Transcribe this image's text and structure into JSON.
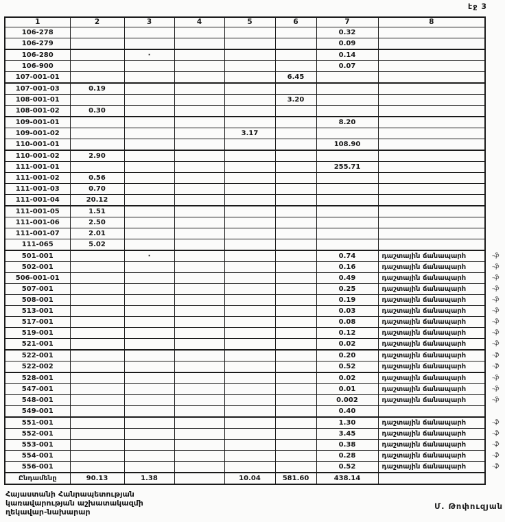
{
  "page": {
    "label": "էջ 3"
  },
  "table": {
    "headers": [
      "1",
      "2",
      "3",
      "4",
      "5",
      "6",
      "7",
      "8"
    ],
    "rows": [
      {
        "code": "106-278",
        "c7": "0.32"
      },
      {
        "code": "106-279",
        "c7": "0.09"
      },
      {
        "code": "106-280",
        "c3": "·",
        "c7": "0.14"
      },
      {
        "code": "106-900",
        "c7": "0.07"
      },
      {
        "code": "107-001-01",
        "c6": "6.45"
      },
      {
        "code": "107-001-03",
        "c2": "0.19"
      },
      {
        "code": "108-001-01",
        "c6": "3.20"
      },
      {
        "code": "108-001-02",
        "c2": "0.30"
      },
      {
        "code": "109-001-01",
        "c7": "8.20"
      },
      {
        "code": "109-001-02",
        "c5": "3.17"
      },
      {
        "code": "110-001-01",
        "c7": "108.90"
      },
      {
        "code": "110-001-02",
        "c2": "2.90"
      },
      {
        "code": "111-001-01",
        "c7": "255.71"
      },
      {
        "code": "111-001-02",
        "c2": "0.56"
      },
      {
        "code": "111-001-03",
        "c2": "0.70"
      },
      {
        "code": "111-001-04",
        "c2": "20.12"
      },
      {
        "code": "111-001-05",
        "c2": "1.51"
      },
      {
        "code": "111-001-06",
        "c2": "2.50"
      },
      {
        "code": "111-001-07",
        "c2": "2.01"
      },
      {
        "code": "111-065",
        "c2": "5.02"
      },
      {
        "code": "501-001",
        "c3": "·",
        "c7": "0.74",
        "c8": "դաշտային ճանապարհ",
        "mark": "-ֆ"
      },
      {
        "code": "502-001",
        "c7": "0.16",
        "c8": "դաշտային ճանապարհ",
        "mark": "-ֆ"
      },
      {
        "code": "506-001-01",
        "c7": "0.49",
        "c8": "դաշտային ճանապարհ",
        "mark": "-ֆ"
      },
      {
        "code": "507-001",
        "c7": "0.25",
        "c8": "դաշտային ճանապարհ",
        "mark": "-ֆ"
      },
      {
        "code": "508-001",
        "c7": "0.19",
        "c8": "դաշտային ճանապարհ",
        "mark": "-ֆ"
      },
      {
        "code": "513-001",
        "c7": "0.03",
        "c8": "դաշտային ճանապարհ",
        "mark": "-ֆ"
      },
      {
        "code": "517-001",
        "c7": "0.08",
        "c8": "դաշտային ճանապարհ",
        "mark": "-ֆ"
      },
      {
        "code": "519-001",
        "c7": "0.12",
        "c8": "դաշտային ճանապարհ",
        "mark": "-ֆ"
      },
      {
        "code": "521-001",
        "c7": "0.02",
        "c8": "դաշտային ճանապարհ",
        "mark": "-ֆ"
      },
      {
        "code": "522-001",
        "c7": "0.20",
        "c8": "դաշտային ճանապարհ",
        "mark": "-ֆ"
      },
      {
        "code": "522-002",
        "c7": "0.52",
        "c8": "դաշտային ճանապարհ",
        "mark": "-ֆ"
      },
      {
        "code": "528-001",
        "c7": "0.02",
        "c8": "դաշտային ճանապարհ",
        "mark": "-ֆ"
      },
      {
        "code": "547-001",
        "c7": "0.01",
        "c8": "դաշտային ճանապարհ",
        "mark": "-ֆ"
      },
      {
        "code": "548-001",
        "c7": "0.002",
        "c8": "դաշտային ճանապարհ",
        "mark": "-ֆ"
      },
      {
        "code": "549-001",
        "c7": "0.40"
      },
      {
        "code": "551-001",
        "c7": "1.30",
        "c8": "դաշտային ճանապարհ",
        "mark": "-ֆ"
      },
      {
        "code": "552-001",
        "c7": "3.45",
        "c8": "դաշտային ճանապարհ",
        "mark": "-ֆ"
      },
      {
        "code": "553-001",
        "c7": "0.38",
        "c8": "դաշտային ճանապարհ",
        "mark": "-ֆ"
      },
      {
        "code": "554-001",
        "c7": "0.28",
        "c8": "դաշտային ճանապարհ",
        "mark": "-ֆ"
      },
      {
        "code": "556-001",
        "c7": "0.52",
        "c8": "դաշտային ճանապարհ",
        "mark": "-ֆ"
      }
    ],
    "total": {
      "label": "Ընդամենը",
      "c2": "90.13",
      "c3": "1.38",
      "c4": "",
      "c5": "10.04",
      "c6": "581.60",
      "c7": "438.14",
      "c8": ""
    }
  },
  "footer": {
    "org_lines": [
      "Հայաստանի Հանրապետության",
      "կառավարության աշխատակազմի",
      "ղեկավար-նախարար"
    ],
    "signer": "Մ. Թոփուզյան"
  }
}
